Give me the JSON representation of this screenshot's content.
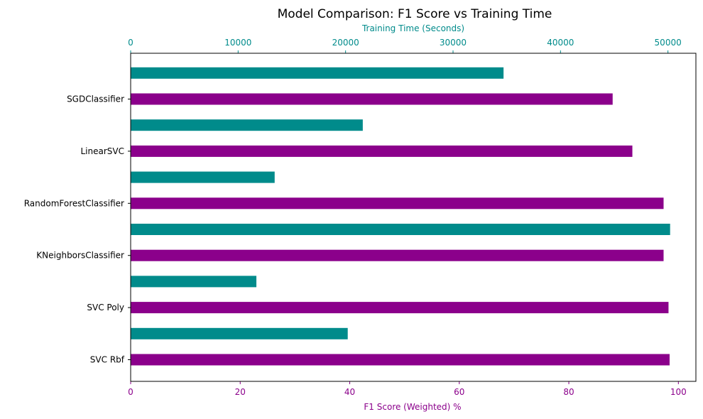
{
  "chart_data": {
    "type": "bar",
    "orientation": "horizontal",
    "title": "Model Comparison: F1 Score vs Training Time",
    "categories": [
      "SGDClassifier",
      "LinearSVC",
      "RandomForestClassifier",
      "KNeighborsClassifier",
      "SVC Poly",
      "SVC Rbf"
    ],
    "series": [
      {
        "name": "F1 Score (Weighted) %",
        "axis": "bottom",
        "color": "#8b008b",
        "values": [
          88.0,
          91.6,
          97.3,
          97.3,
          98.2,
          98.4
        ]
      },
      {
        "name": "Training Time (Seconds)",
        "axis": "top",
        "color": "#008b8b",
        "values": [
          34700,
          21600,
          13400,
          50200,
          11700,
          20200
        ]
      }
    ],
    "xaxis_bottom": {
      "label": "F1 Score (Weighted) %",
      "range": [
        0,
        103.2
      ],
      "ticks": [
        0,
        20,
        40,
        60,
        80,
        100
      ],
      "tick_labels": [
        "0",
        "20",
        "40",
        "60",
        "80",
        "100"
      ],
      "color": "#8b008b"
    },
    "xaxis_top": {
      "label": "Training Time (Seconds)",
      "range": [
        0,
        52600
      ],
      "ticks": [
        0,
        10000,
        20000,
        30000,
        40000,
        50000
      ],
      "tick_labels": [
        "0",
        "10000",
        "20000",
        "30000",
        "40000",
        "50000"
      ],
      "color": "#008b8b"
    },
    "grid": false,
    "legend": "none"
  }
}
